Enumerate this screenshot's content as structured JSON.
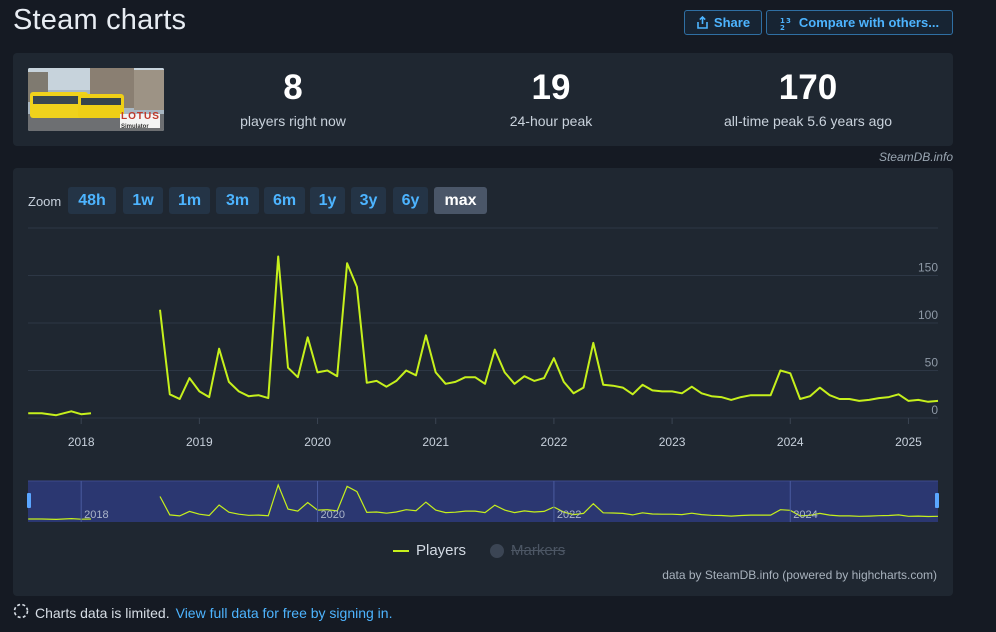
{
  "page": {
    "title": "Steam charts"
  },
  "header": {
    "share_label": "Share",
    "compare_label": "Compare with others..."
  },
  "stats": [
    {
      "value": "8",
      "label": "players right now"
    },
    {
      "value": "19",
      "label": "24-hour peak"
    },
    {
      "value": "170",
      "label": "all-time peak 5.6 years ago"
    }
  ],
  "game_image": {
    "icon": "game-thumbnail",
    "logo_text": "LOTUS",
    "logo_subtext": "Simulator"
  },
  "credit": "SteamDB.info",
  "zoom": {
    "label": "Zoom",
    "options": [
      "48h",
      "1w",
      "1m",
      "3m",
      "6m",
      "1y",
      "3y",
      "6y",
      "max"
    ],
    "selected": "max"
  },
  "legend": {
    "players": "Players",
    "markers": "Markers"
  },
  "chart_credit": "data by SteamDB.info (powered by highcharts.com)",
  "notice": {
    "text": "Charts data is limited.",
    "link": "View full data for free by signing in."
  },
  "colors": {
    "series": "#c6f01c",
    "accent": "#4db4ff",
    "background": "#151a23",
    "panel": "#1f2731"
  },
  "chart_data": {
    "type": "line",
    "title": "",
    "xlabel": "",
    "ylabel": "",
    "ylim": [
      0,
      200
    ],
    "yticks": [
      0,
      50,
      100,
      150
    ],
    "xticks": [
      "2018",
      "2019",
      "2020",
      "2021",
      "2022",
      "2023",
      "2024",
      "2025"
    ],
    "navigator_labels": [
      "2018",
      "2020",
      "2022",
      "2024"
    ],
    "grid": true,
    "series": [
      {
        "name": "Players",
        "segments": [
          {
            "x": [
              "2017-07-20",
              "2017-09-01",
              "2017-10-15",
              "2017-12-01",
              "2018-01-01",
              "2018-02-01"
            ],
            "y": [
              5,
              5,
              3,
              7,
              4,
              5
            ]
          },
          {
            "x": [
              "2018-09-01",
              "2018-10-01",
              "2018-11-01",
              "2018-12-01",
              "2019-01-01",
              "2019-02-01",
              "2019-03-01",
              "2019-04-01",
              "2019-05-01",
              "2019-06-01",
              "2019-07-01",
              "2019-08-01",
              "2019-09-01",
              "2019-10-01",
              "2019-11-01",
              "2019-12-01",
              "2020-01-01",
              "2020-02-01",
              "2020-03-01",
              "2020-04-01",
              "2020-05-01",
              "2020-06-01",
              "2020-07-01",
              "2020-08-01",
              "2020-09-01",
              "2020-10-01",
              "2020-11-01",
              "2020-12-01",
              "2021-01-01",
              "2021-02-01",
              "2021-03-01",
              "2021-04-01",
              "2021-05-01",
              "2021-06-01",
              "2021-07-01",
              "2021-08-01",
              "2021-09-01",
              "2021-10-01",
              "2021-11-01",
              "2021-12-01",
              "2022-01-01",
              "2022-02-01",
              "2022-03-01",
              "2022-04-01",
              "2022-05-01",
              "2022-06-01",
              "2022-07-01",
              "2022-08-01",
              "2022-09-01",
              "2022-10-01",
              "2022-11-01",
              "2022-12-01",
              "2023-01-01",
              "2023-02-01",
              "2023-03-01",
              "2023-04-01",
              "2023-05-01",
              "2023-06-01",
              "2023-07-01",
              "2023-08-01",
              "2023-09-01",
              "2023-10-01",
              "2023-11-01",
              "2023-12-01",
              "2024-01-01",
              "2024-02-01",
              "2024-03-01",
              "2024-04-01",
              "2024-05-01",
              "2024-06-01",
              "2024-07-01",
              "2024-08-01",
              "2024-09-01",
              "2024-10-01",
              "2024-11-01",
              "2024-12-01",
              "2025-01-01",
              "2025-02-01",
              "2025-03-01",
              "2025-04-01"
            ],
            "y": [
              114,
              25,
              20,
              42,
              28,
              22,
              73,
              38,
              28,
              23,
              24,
              21,
              170,
              53,
              43,
              85,
              48,
              50,
              44,
              163,
              138,
              37,
              39,
              33,
              39,
              50,
              45,
              87,
              48,
              36,
              38,
              43,
              43,
              36,
              72,
              48,
              36,
              44,
              39,
              42,
              63,
              38,
              26,
              32,
              79,
              35,
              34,
              32,
              25,
              35,
              29,
              28,
              28,
              26,
              33,
              26,
              23,
              22,
              19,
              22,
              24,
              24,
              24,
              50,
              47,
              20,
              23,
              32,
              24,
              20,
              20,
              18,
              19,
              21,
              22,
              25,
              18,
              19,
              17,
              18
            ]
          }
        ]
      }
    ]
  }
}
